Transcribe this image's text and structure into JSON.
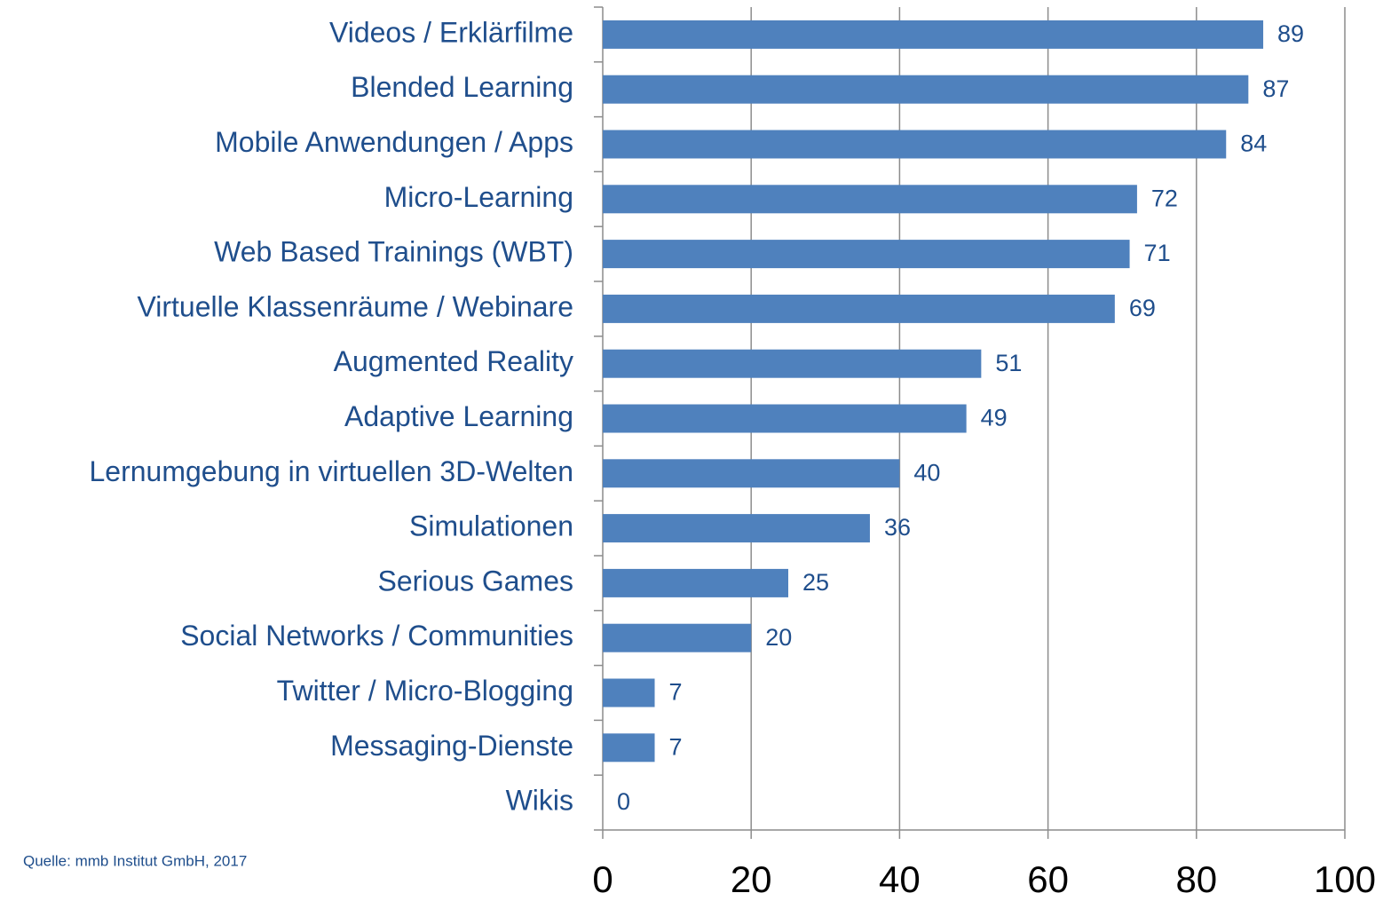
{
  "chart_data": {
    "type": "bar",
    "orientation": "horizontal",
    "categories": [
      "Videos / Erklärfilme",
      "Blended Learning",
      "Mobile Anwendungen / Apps",
      "Micro-Learning",
      "Web Based Trainings (WBT)",
      "Virtuelle Klassenräume / Webinare",
      "Augmented Reality",
      "Adaptive Learning",
      "Lernumgebung in virtuellen 3D-Welten",
      "Simulationen",
      "Serious Games",
      "Social Networks / Communities",
      "Twitter / Micro-Blogging",
      "Messaging-Dienste",
      "Wikis"
    ],
    "values": [
      89,
      87,
      84,
      72,
      71,
      69,
      51,
      49,
      40,
      36,
      25,
      20,
      7,
      7,
      0
    ],
    "color": "#4f81bd",
    "xlim": [
      0,
      100
    ],
    "xticks": [
      0,
      20,
      40,
      60,
      80,
      100
    ],
    "grid": true,
    "source": "Quelle: mmb Institut GmbH, 2017"
  }
}
